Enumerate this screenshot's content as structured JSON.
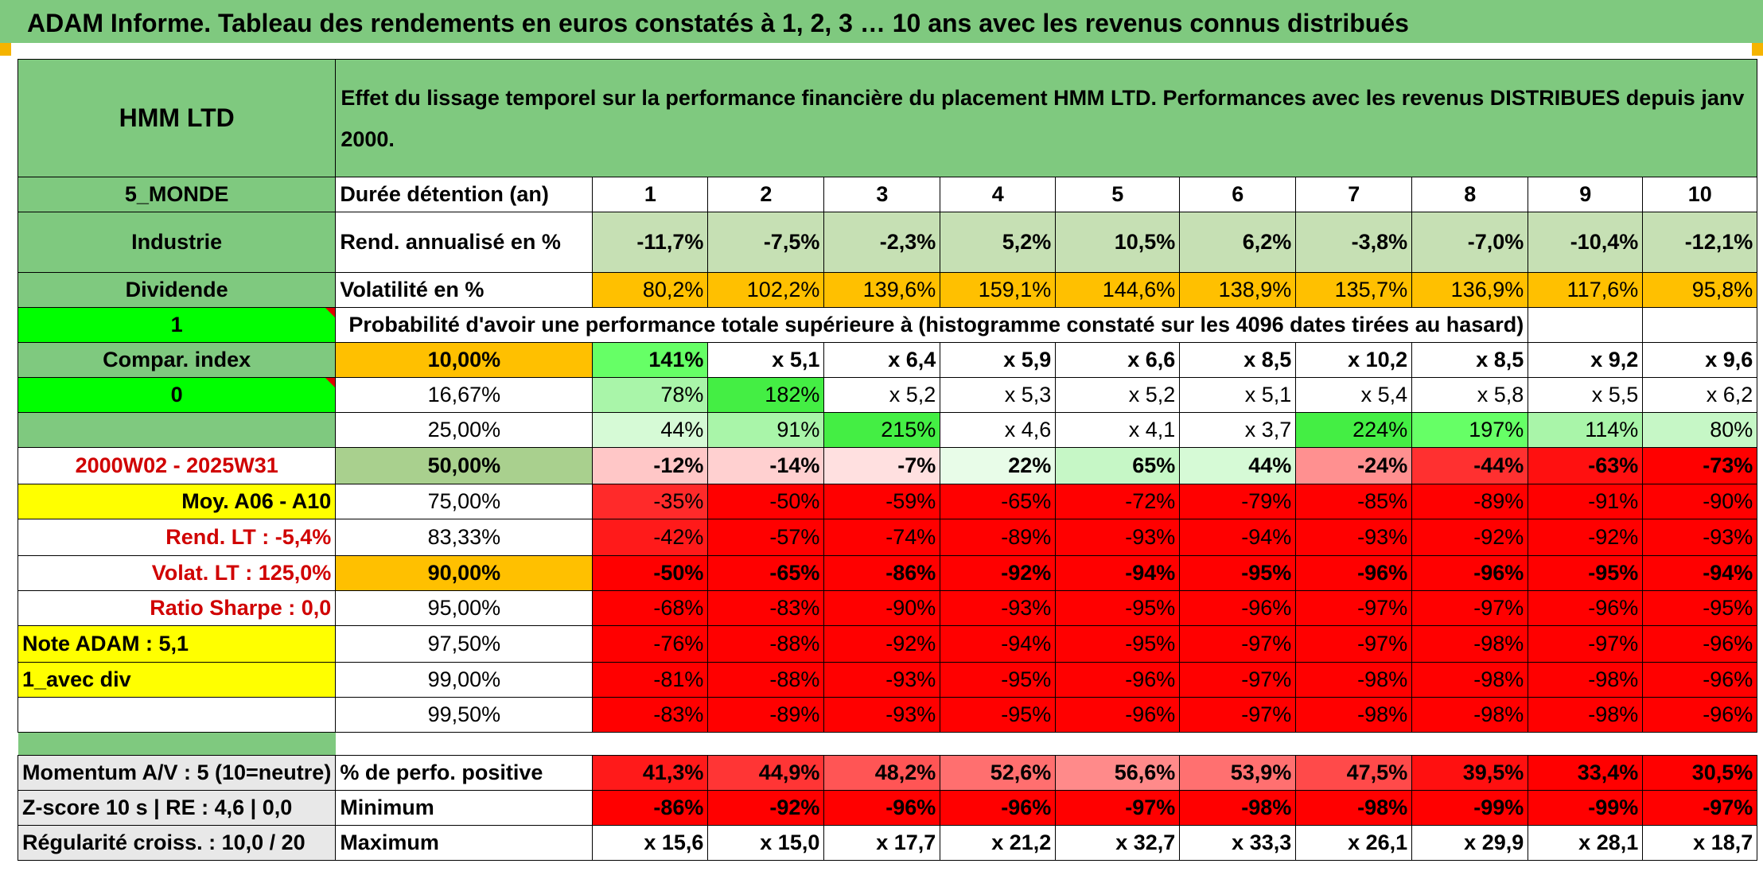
{
  "banner": "ADAM Informe. Tableau des rendements en euros constatés à 1, 2, 3 … 10 ans avec les revenus connus distribués",
  "left": {
    "fund": "HMM LTD",
    "region": "5_MONDE",
    "sector": "Industrie",
    "income": "Dividende",
    "one": "1",
    "compar": "Compar. index",
    "zero": "0",
    "period": "2000W02 - 2025W31",
    "moy": "Moy. A06 - A10",
    "rend_lt": "Rend. LT :    -5,4%",
    "volat_lt": "Volat. LT :   125,0%",
    "sharpe": "Ratio Sharpe :    0,0",
    "note": "Note ADAM : 5,1",
    "avecdiv": "1_avec div",
    "momentum": "Momentum A/V : 5 (10=neutre)",
    "zscore": "Z-score 10 s | RE : 4,6 | 0,0",
    "regul": "Régularité croiss. : 10,0 / 20"
  },
  "title": "Effet du lissage temporel sur la performance financière du placement HMM LTD. Performances avec les revenus DISTRIBUES depuis janv 2000.",
  "header": {
    "label": "Durée détention (an)",
    "years": [
      "1",
      "2",
      "3",
      "4",
      "5",
      "6",
      "7",
      "8",
      "9",
      "10"
    ]
  },
  "rend": {
    "label": "Rend. annualisé en %",
    "values": [
      "-11,7%",
      "-7,5%",
      "-2,3%",
      "5,2%",
      "10,5%",
      "6,2%",
      "-3,8%",
      "-7,0%",
      "-10,4%",
      "-12,1%"
    ]
  },
  "vol": {
    "label": "Volatilité en %",
    "values": [
      "80,2%",
      "102,2%",
      "139,6%",
      "159,1%",
      "144,6%",
      "138,9%",
      "135,7%",
      "136,9%",
      "117,6%",
      "95,8%"
    ]
  },
  "proba_title": "Probabilité d'avoir une performance totale supérieure à (histogramme constaté sur les 4096 dates tirées au hasard)",
  "rows": [
    {
      "pct": "10,00%",
      "values": [
        "141%",
        "x 5,1",
        "x 6,4",
        "x 5,9",
        "x 6,6",
        "x 8,5",
        "x 10,2",
        "x 8,5",
        "x 9,2",
        "x 9,6"
      ]
    },
    {
      "pct": "16,67%",
      "values": [
        "78%",
        "182%",
        "x 5,2",
        "x 5,3",
        "x 5,2",
        "x 5,1",
        "x 5,4",
        "x 5,8",
        "x 5,5",
        "x 6,2"
      ]
    },
    {
      "pct": "25,00%",
      "values": [
        "44%",
        "91%",
        "215%",
        "x 4,6",
        "x 4,1",
        "x 3,7",
        "224%",
        "197%",
        "114%",
        "80%"
      ]
    },
    {
      "pct": "50,00%",
      "values": [
        "-12%",
        "-14%",
        "-7%",
        "22%",
        "65%",
        "44%",
        "-24%",
        "-44%",
        "-63%",
        "-73%"
      ]
    },
    {
      "pct": "75,00%",
      "values": [
        "-35%",
        "-50%",
        "-59%",
        "-65%",
        "-72%",
        "-79%",
        "-85%",
        "-89%",
        "-91%",
        "-90%"
      ]
    },
    {
      "pct": "83,33%",
      "values": [
        "-42%",
        "-57%",
        "-74%",
        "-89%",
        "-93%",
        "-94%",
        "-93%",
        "-92%",
        "-92%",
        "-93%"
      ]
    },
    {
      "pct": "90,00%",
      "values": [
        "-50%",
        "-65%",
        "-86%",
        "-92%",
        "-94%",
        "-95%",
        "-96%",
        "-96%",
        "-95%",
        "-94%"
      ]
    },
    {
      "pct": "95,00%",
      "values": [
        "-68%",
        "-83%",
        "-90%",
        "-93%",
        "-95%",
        "-96%",
        "-97%",
        "-97%",
        "-96%",
        "-95%"
      ]
    },
    {
      "pct": "97,50%",
      "values": [
        "-76%",
        "-88%",
        "-92%",
        "-94%",
        "-95%",
        "-97%",
        "-97%",
        "-98%",
        "-97%",
        "-96%"
      ]
    },
    {
      "pct": "99,00%",
      "values": [
        "-81%",
        "-88%",
        "-93%",
        "-95%",
        "-96%",
        "-97%",
        "-98%",
        "-98%",
        "-98%",
        "-96%"
      ]
    },
    {
      "pct": "99,50%",
      "values": [
        "-83%",
        "-89%",
        "-93%",
        "-95%",
        "-96%",
        "-97%",
        "-98%",
        "-98%",
        "-98%",
        "-96%"
      ]
    }
  ],
  "pos": {
    "label": "% de perfo. positive",
    "values": [
      "41,3%",
      "44,9%",
      "48,2%",
      "52,6%",
      "56,6%",
      "53,9%",
      "47,5%",
      "39,5%",
      "33,4%",
      "30,5%"
    ]
  },
  "min": {
    "label": "Minimum",
    "values": [
      "-86%",
      "-92%",
      "-96%",
      "-96%",
      "-97%",
      "-98%",
      "-98%",
      "-99%",
      "-99%",
      "-97%"
    ]
  },
  "max": {
    "label": "Maximum",
    "values": [
      "x 15,6",
      "x 15,0",
      "x 17,7",
      "x 21,2",
      "x 32,7",
      "x 33,3",
      "x 26,1",
      "x 29,9",
      "x 28,1",
      "x 18,7"
    ]
  },
  "colors": {
    "rend": [
      "#c6e0b4",
      "#c6e0b4",
      "#c6e0b4",
      "#c6e0b4",
      "#c6e0b4",
      "#c6e0b4",
      "#c6e0b4",
      "#c6e0b4",
      "#c6e0b4",
      "#c6e0b4"
    ],
    "vol": [
      "#ffc000",
      "#ffc000",
      "#ffc000",
      "#ffc000",
      "#ffc000",
      "#ffc000",
      "#ffc000",
      "#ffc000",
      "#ffc000",
      "#ffc000"
    ],
    "rows": [
      [
        "#66ff66",
        "#ffffff",
        "#ffffff",
        "#ffffff",
        "#ffffff",
        "#ffffff",
        "#ffffff",
        "#ffffff",
        "#ffffff",
        "#ffffff"
      ],
      [
        "#a9f5a9",
        "#44ee44",
        "#ffffff",
        "#ffffff",
        "#ffffff",
        "#ffffff",
        "#ffffff",
        "#ffffff",
        "#ffffff",
        "#ffffff"
      ],
      [
        "#d6fad6",
        "#a9f5a9",
        "#44ee44",
        "#ffffff",
        "#ffffff",
        "#ffffff",
        "#44ee44",
        "#66ff66",
        "#a9f5a9",
        "#c6f7c6"
      ],
      [
        "#ffc7c7",
        "#ffd0d0",
        "#ffe0e0",
        "#e8fce8",
        "#c6f7c6",
        "#d6fad6",
        "#ff9090",
        "#ff3030",
        "#ff1010",
        "#ff0000"
      ],
      [
        "#ff2a2a",
        "#ff0000",
        "#ff0000",
        "#ff0000",
        "#ff0000",
        "#ff0000",
        "#ff0000",
        "#ff0000",
        "#ff0000",
        "#ff0000"
      ],
      [
        "#ff1a1a",
        "#ff0000",
        "#ff0000",
        "#ff0000",
        "#ff0000",
        "#ff0000",
        "#ff0000",
        "#ff0000",
        "#ff0000",
        "#ff0000"
      ],
      [
        "#ff0000",
        "#ff0000",
        "#ff0000",
        "#ff0000",
        "#ff0000",
        "#ff0000",
        "#ff0000",
        "#ff0000",
        "#ff0000",
        "#ff0000"
      ],
      [
        "#ff0000",
        "#ff0000",
        "#ff0000",
        "#ff0000",
        "#ff0000",
        "#ff0000",
        "#ff0000",
        "#ff0000",
        "#ff0000",
        "#ff0000"
      ],
      [
        "#ff0000",
        "#ff0000",
        "#ff0000",
        "#ff0000",
        "#ff0000",
        "#ff0000",
        "#ff0000",
        "#ff0000",
        "#ff0000",
        "#ff0000"
      ],
      [
        "#ff0000",
        "#ff0000",
        "#ff0000",
        "#ff0000",
        "#ff0000",
        "#ff0000",
        "#ff0000",
        "#ff0000",
        "#ff0000",
        "#ff0000"
      ],
      [
        "#ff0000",
        "#ff0000",
        "#ff0000",
        "#ff0000",
        "#ff0000",
        "#ff0000",
        "#ff0000",
        "#ff0000",
        "#ff0000",
        "#ff0000"
      ]
    ],
    "pos": [
      "#ff1a1a",
      "#ff3535",
      "#ff5555",
      "#ff6f6f",
      "#ff8a8a",
      "#ff7070",
      "#ff4a4a",
      "#ff1010",
      "#ff0000",
      "#ff0000"
    ],
    "min": [
      "#ff0000",
      "#ff0000",
      "#ff0000",
      "#ff0000",
      "#ff0000",
      "#ff0000",
      "#ff0000",
      "#ff0000",
      "#ff0000",
      "#ff0000"
    ]
  }
}
